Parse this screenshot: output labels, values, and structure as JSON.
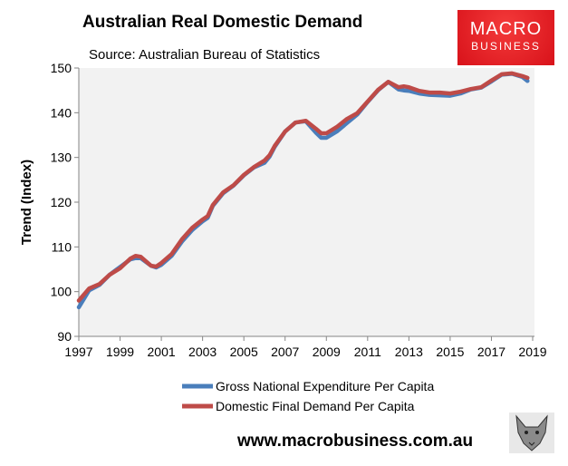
{
  "chart_data": {
    "type": "line",
    "title": "Australian Real Domestic Demand",
    "subtitle": "Source: Australian Bureau of Statistics",
    "xlabel": "",
    "ylabel": "Trend (Index)",
    "xlim": [
      1997,
      2019
    ],
    "ylim": [
      90,
      150
    ],
    "xticks": [
      1997,
      1999,
      2001,
      2003,
      2005,
      2007,
      2009,
      2011,
      2013,
      2015,
      2017,
      2019
    ],
    "yticks": [
      90,
      100,
      110,
      120,
      130,
      140,
      150
    ],
    "grid": false,
    "legend": "bottom",
    "x": [
      1997.0,
      1997.5,
      1998.0,
      1998.5,
      1999.0,
      1999.5,
      1999.75,
      2000.0,
      2000.5,
      2000.75,
      2001.0,
      2001.5,
      2002.0,
      2002.5,
      2003.0,
      2003.25,
      2003.5,
      2004.0,
      2004.5,
      2005.0,
      2005.5,
      2006.0,
      2006.25,
      2006.5,
      2007.0,
      2007.5,
      2008.0,
      2008.5,
      2008.75,
      2009.0,
      2009.5,
      2010.0,
      2010.5,
      2011.0,
      2011.5,
      2012.0,
      2012.5,
      2012.75,
      2013.0,
      2013.5,
      2014.0,
      2014.5,
      2015.0,
      2015.5,
      2016.0,
      2016.5,
      2017.0,
      2017.5,
      2018.0,
      2018.5,
      2018.75
    ],
    "series": [
      {
        "name": "Gross National Expenditure Per Capita",
        "color": "#4a7ebb",
        "values": [
          96.5,
          100.3,
          101.5,
          103.8,
          105.5,
          107.2,
          107.5,
          107.5,
          105.8,
          105.4,
          106.0,
          108.0,
          111.2,
          113.8,
          115.7,
          116.5,
          119.2,
          122.0,
          123.7,
          126.0,
          127.8,
          128.8,
          130.2,
          132.4,
          135.8,
          137.8,
          138.1,
          135.5,
          134.4,
          134.4,
          135.8,
          137.7,
          139.6,
          142.4,
          145.0,
          146.9,
          145.2,
          145.0,
          144.9,
          144.3,
          144.0,
          143.9,
          143.8,
          144.3,
          145.2,
          145.6,
          147.0,
          148.5,
          148.7,
          148.0,
          147.1
        ]
      },
      {
        "name": "Domestic Final Demand Per Capita",
        "color": "#be4b48",
        "values": [
          98.0,
          100.7,
          101.7,
          103.8,
          105.2,
          107.4,
          108.0,
          107.8,
          105.8,
          105.6,
          106.4,
          108.4,
          111.7,
          114.3,
          116.1,
          116.9,
          119.4,
          122.2,
          123.8,
          126.1,
          127.9,
          129.3,
          130.5,
          132.6,
          135.8,
          137.8,
          138.2,
          136.4,
          135.4,
          135.4,
          136.8,
          138.6,
          139.9,
          142.5,
          145.1,
          146.9,
          145.7,
          145.9,
          145.7,
          144.9,
          144.5,
          144.5,
          144.3,
          144.7,
          145.3,
          145.7,
          147.2,
          148.6,
          148.8,
          148.2,
          147.8
        ]
      }
    ]
  },
  "logo": {
    "line1": "MACRO",
    "line2": "BUSINESS"
  },
  "footer": {
    "url": "www.macrobusiness.com.au"
  }
}
